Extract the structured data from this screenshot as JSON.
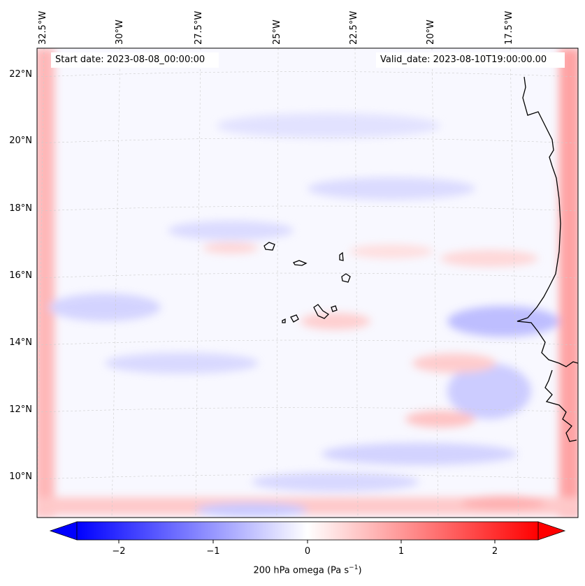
{
  "map": {
    "start_date_text": "Start date: 2023-08-08_00:00:00",
    "valid_date_text": "Valid_date: 2023-08-10T19:00:00.00",
    "lon_labels": [
      "32.5°W",
      "30°W",
      "27.5°W",
      "25°W",
      "22.5°W",
      "20°W",
      "17.5°W"
    ],
    "lat_labels": [
      "22°N",
      "20°N",
      "18°N",
      "16°N",
      "14°N",
      "12°N",
      "10°N"
    ],
    "variable": "200 hPa omega",
    "colors": {
      "negative": "#0000ff",
      "neutral": "#ffffff",
      "positive": "#ff0000",
      "coast": "#000000"
    }
  },
  "colorbar": {
    "ticks": [
      "−2",
      "−1",
      "0",
      "1",
      "2"
    ],
    "label_main": "200 hPa omega (Pa s",
    "label_sup": "−1",
    "label_end": ")",
    "range": [
      -2.75,
      2.75
    ]
  }
}
